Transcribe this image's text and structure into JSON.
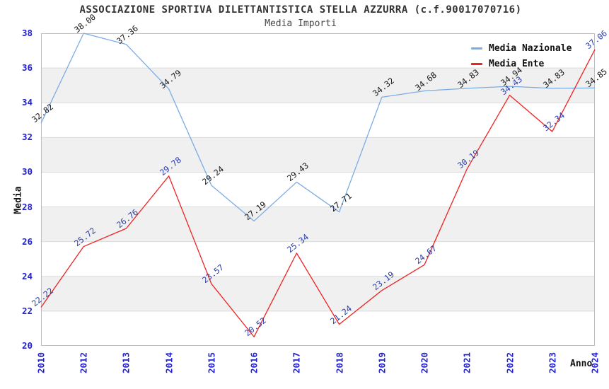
{
  "chart": {
    "title": "ASSOCIAZIONE SPORTIVA DILETTANTISTICA STELLA AZZURRA (c.f.90017070716)",
    "subtitle": "Media Importi",
    "y_axis_title": "Media",
    "x_axis_title": "Anno"
  },
  "chart_data": {
    "type": "line",
    "title": "ASSOCIAZIONE SPORTIVA DILETTANTISTICA STELLA AZZURRA (c.f.90017070716)",
    "subtitle": "Media Importi",
    "xlabel": "Anno",
    "ylabel": "Media",
    "categories": [
      "2010",
      "2012",
      "2013",
      "2014",
      "2015",
      "2016",
      "2017",
      "2018",
      "2019",
      "2020",
      "2021",
      "2022",
      "2023",
      "2024"
    ],
    "series": [
      {
        "name": "Media Nazionale",
        "color": "#7CACE4",
        "label_color": "#1A1A1A",
        "values": [
          32.82,
          38.0,
          37.36,
          34.79,
          29.24,
          27.19,
          29.43,
          27.71,
          34.32,
          34.68,
          34.83,
          34.94,
          34.83,
          34.85
        ]
      },
      {
        "name": "Media Ente",
        "color": "#EE2222",
        "label_color": "#2D3FA8",
        "values": [
          22.22,
          25.72,
          26.76,
          29.78,
          23.57,
          20.52,
          25.34,
          21.24,
          23.19,
          24.67,
          30.19,
          34.43,
          32.34,
          37.06
        ]
      }
    ],
    "ylim": [
      20,
      38
    ],
    "ytick_step": 2,
    "yticks": [
      20,
      22,
      24,
      26,
      28,
      30,
      32,
      34,
      36,
      38
    ],
    "grid": true,
    "alternating_bands": true,
    "legend_position": "top-right-inside",
    "point_labels": "values shown at each point, 2 decimals, rotated",
    "colors": {
      "tick_label": "#2222CC",
      "band": "#F0F0F0",
      "gridline": "#DBDBDB",
      "plot_border": "#BFBFBF",
      "title_text": "#333333",
      "axis_title_text": "#111111"
    }
  }
}
